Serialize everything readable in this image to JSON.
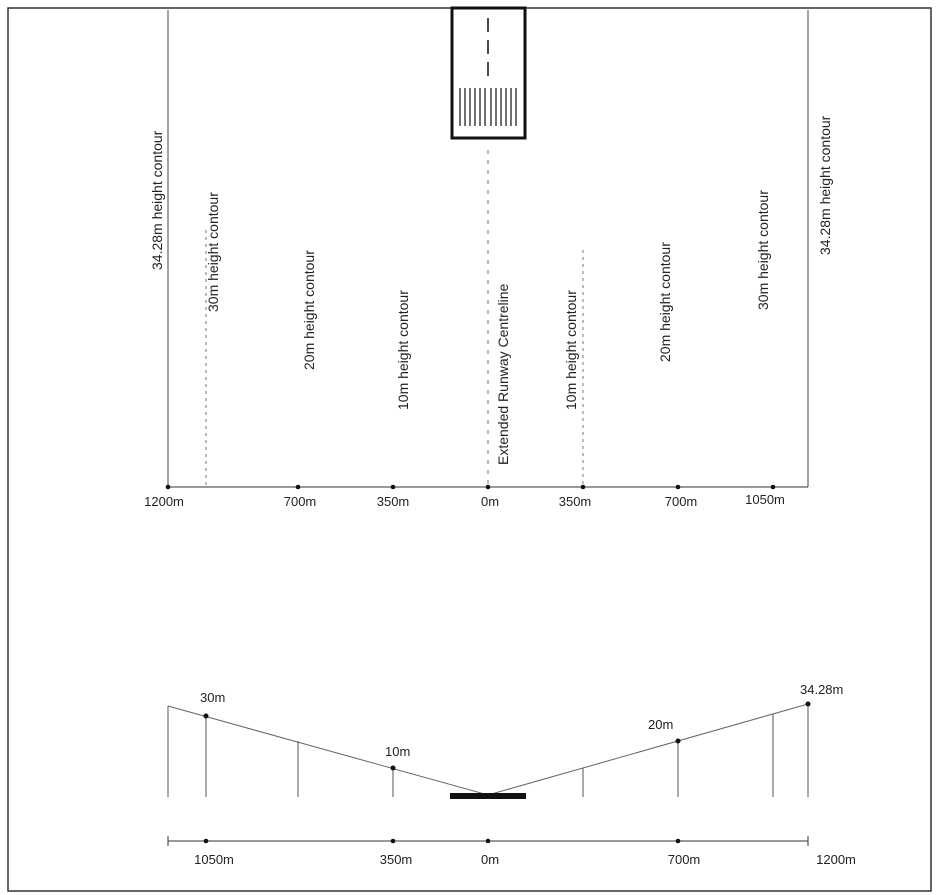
{
  "plan": {
    "contour_labels": {
      "left_34": "34.28m height contour",
      "left_30": "30m height contour",
      "left_20": "20m height contour",
      "left_10": "10m height contour",
      "centreline": "Extended Runway Centreline",
      "right_10": "10m height contour",
      "right_20": "20m height contour",
      "right_30": "30m height contour",
      "right_34": "34.28m height contour"
    },
    "scale_ticks": [
      "1200m",
      "700m",
      "350m",
      "0m",
      "350m",
      "700m",
      "1050m"
    ]
  },
  "section": {
    "height_labels": [
      "30m",
      "10m",
      "20m",
      "34.28m"
    ],
    "scale_ticks": [
      "1050m",
      "350m",
      "0m",
      "700m",
      "1200m"
    ]
  }
}
